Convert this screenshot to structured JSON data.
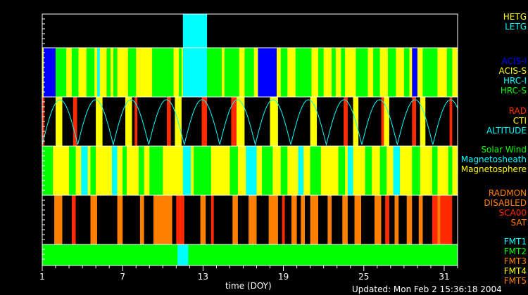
{
  "chart_data": {
    "type": "timeline",
    "xlabel": "time (DOY)",
    "xlim": [
      1,
      32
    ],
    "ticks": [
      "1",
      "7",
      "13",
      "19",
      "25",
      "31"
    ],
    "colors": {
      "yellow": "#ffff00",
      "green": "#00ff00",
      "blue": "#0000ff",
      "cyan": "#00ffff",
      "red": "#ff2a00",
      "orange": "#ff8000",
      "black": "#000000"
    },
    "panels": [
      {
        "name": "grating",
        "legend": [
          {
            "label": "HETG",
            "color": "#ffff00"
          },
          {
            "label": "LETG",
            "color": "#00ffff"
          }
        ],
        "segments": [
          [
            11.5,
            13.3,
            "cyan"
          ]
        ]
      },
      {
        "name": "instrument",
        "legend": [
          {
            "label": "ACIS-I",
            "color": "#0000ff"
          },
          {
            "label": "ACIS-S",
            "color": "#ffff00"
          },
          {
            "label": "HRC-I",
            "color": "#00ffff"
          },
          {
            "label": "HRC-S",
            "color": "#00ff00"
          }
        ],
        "background": "yellow",
        "segments": [
          [
            1.1,
            2.0,
            "blue"
          ],
          [
            2.0,
            2.8,
            "green"
          ],
          [
            3.2,
            3.7,
            "green"
          ],
          [
            4.3,
            4.9,
            "green"
          ],
          [
            5.1,
            5.3,
            "cyan"
          ],
          [
            5.8,
            6.1,
            "green"
          ],
          [
            6.3,
            6.6,
            "green"
          ],
          [
            7.4,
            8.0,
            "green"
          ],
          [
            9.2,
            10.8,
            "green"
          ],
          [
            11.2,
            11.4,
            "green"
          ],
          [
            11.5,
            13.3,
            "cyan"
          ],
          [
            13.3,
            14.4,
            "green"
          ],
          [
            14.6,
            15.7,
            "green"
          ],
          [
            16.1,
            16.8,
            "green"
          ],
          [
            17.1,
            18.5,
            "blue"
          ],
          [
            18.8,
            19.3,
            "green"
          ],
          [
            19.9,
            21.1,
            "green"
          ],
          [
            21.6,
            22.0,
            "green"
          ],
          [
            22.6,
            22.9,
            "green"
          ],
          [
            23.3,
            23.6,
            "green"
          ],
          [
            24.4,
            25.3,
            "green"
          ],
          [
            25.7,
            26.2,
            "green"
          ],
          [
            26.8,
            27.4,
            "green"
          ],
          [
            28.0,
            28.4,
            "green"
          ],
          [
            28.6,
            29.0,
            "blue"
          ],
          [
            29.4,
            30.5,
            "green"
          ],
          [
            31.2,
            31.6,
            "green"
          ]
        ]
      },
      {
        "name": "radiation",
        "legend": [
          {
            "label": "RAD",
            "color": "#ff2a00"
          },
          {
            "label": "CTI",
            "color": "#ffff00"
          },
          {
            "label": "ALTITUDE",
            "color": "#00ffff"
          }
        ],
        "segments": [
          [
            1.0,
            1.15,
            "red"
          ],
          [
            2.0,
            2.5,
            "yellow"
          ],
          [
            3.3,
            3.6,
            "red"
          ],
          [
            5.0,
            5.5,
            "yellow"
          ],
          [
            7.2,
            7.7,
            "yellow"
          ],
          [
            7.9,
            8.1,
            "red"
          ],
          [
            10.3,
            10.6,
            "red"
          ],
          [
            10.9,
            11.4,
            "yellow"
          ],
          [
            12.9,
            13.3,
            "red"
          ],
          [
            15.1,
            15.5,
            "red"
          ],
          [
            15.5,
            16.1,
            "yellow"
          ],
          [
            18.0,
            18.6,
            "yellow"
          ],
          [
            21.0,
            21.5,
            "yellow"
          ],
          [
            23.5,
            23.8,
            "red"
          ],
          [
            24.2,
            24.6,
            "yellow"
          ],
          [
            26.3,
            26.5,
            "red"
          ],
          [
            26.5,
            26.9,
            "yellow"
          ],
          [
            28.6,
            28.9,
            "red"
          ],
          [
            29.2,
            29.6,
            "yellow"
          ],
          [
            31.4,
            31.6,
            "red"
          ]
        ],
        "altitude": {
          "period_days": 2.65,
          "phase_start": 1.0
        }
      },
      {
        "name": "environment",
        "legend": [
          {
            "label": "Solar Wind",
            "color": "#00ff00"
          },
          {
            "label": "Magnetosheath",
            "color": "#00ffff"
          },
          {
            "label": "Magnetosphere",
            "color": "#ffff00"
          }
        ],
        "background": "yellow",
        "segments": [
          [
            1.0,
            1.8,
            "green"
          ],
          [
            3.0,
            3.5,
            "green"
          ],
          [
            3.9,
            4.4,
            "cyan"
          ],
          [
            4.6,
            5.0,
            "green"
          ],
          [
            6.2,
            6.6,
            "cyan"
          ],
          [
            7.0,
            7.3,
            "green"
          ],
          [
            8.2,
            8.6,
            "green"
          ],
          [
            9.0,
            10.0,
            "green"
          ],
          [
            11.5,
            12.1,
            "cyan"
          ],
          [
            12.3,
            13.6,
            "green"
          ],
          [
            15.0,
            15.6,
            "green"
          ],
          [
            16.2,
            17.0,
            "cyan"
          ],
          [
            17.4,
            18.2,
            "green"
          ],
          [
            18.8,
            19.3,
            "green"
          ],
          [
            20.1,
            20.5,
            "cyan"
          ],
          [
            21.0,
            21.8,
            "green"
          ],
          [
            23.1,
            23.6,
            "green"
          ],
          [
            23.8,
            24.2,
            "cyan"
          ],
          [
            25.1,
            25.6,
            "green"
          ],
          [
            26.2,
            26.7,
            "green"
          ],
          [
            27.2,
            27.7,
            "cyan"
          ],
          [
            28.6,
            29.2,
            "green"
          ],
          [
            30.1,
            30.5,
            "green"
          ],
          [
            31.3,
            31.6,
            "green"
          ]
        ]
      },
      {
        "name": "radmon",
        "legend": [
          {
            "label": "RADMON",
            "color": "#ff8000"
          },
          {
            "label": "DISABLED",
            "color": "#ff8000"
          },
          {
            "label": "SCA00",
            "color": "#ff2a00"
          },
          {
            "label": "SAT",
            "color": "#ff8000"
          }
        ],
        "segments": [
          [
            1.9,
            2.5,
            "orange"
          ],
          [
            3.2,
            3.5,
            "red"
          ],
          [
            4.6,
            5.1,
            "orange"
          ],
          [
            6.6,
            7.0,
            "orange"
          ],
          [
            8.3,
            8.6,
            "orange"
          ],
          [
            9.3,
            10.7,
            "orange"
          ],
          [
            11.0,
            11.6,
            "red"
          ],
          [
            12.8,
            13.2,
            "orange"
          ],
          [
            13.6,
            13.8,
            "red"
          ],
          [
            15.2,
            15.6,
            "orange"
          ],
          [
            16.4,
            17.0,
            "orange"
          ],
          [
            17.9,
            18.6,
            "orange"
          ],
          [
            18.9,
            19.1,
            "red"
          ],
          [
            19.6,
            20.0,
            "orange"
          ],
          [
            20.3,
            20.6,
            "orange"
          ],
          [
            21.0,
            21.6,
            "orange"
          ],
          [
            22.3,
            22.6,
            "orange"
          ],
          [
            23.4,
            23.8,
            "orange"
          ],
          [
            24.3,
            24.8,
            "orange"
          ],
          [
            25.8,
            26.3,
            "orange"
          ],
          [
            26.6,
            26.9,
            "red"
          ],
          [
            27.3,
            27.6,
            "orange"
          ],
          [
            28.2,
            28.6,
            "orange"
          ],
          [
            29.1,
            29.4,
            "orange"
          ],
          [
            30.1,
            31.6,
            "red"
          ],
          [
            30.5,
            30.7,
            "orange"
          ]
        ]
      },
      {
        "name": "format",
        "legend": [
          {
            "label": "FMT1",
            "color": "#00ffff"
          },
          {
            "label": "FMT2",
            "color": "#00ff00"
          },
          {
            "label": "FMT3",
            "color": "#ff8000"
          },
          {
            "label": "FMT4",
            "color": "#ffff00"
          },
          {
            "label": "FMT5",
            "color": "#ff8000"
          }
        ],
        "background": "green",
        "segments": [
          [
            11.1,
            11.9,
            "cyan"
          ]
        ]
      }
    ]
  },
  "footer": {
    "updated": "Updated: Mon Feb  2 15:36:18 2004"
  }
}
